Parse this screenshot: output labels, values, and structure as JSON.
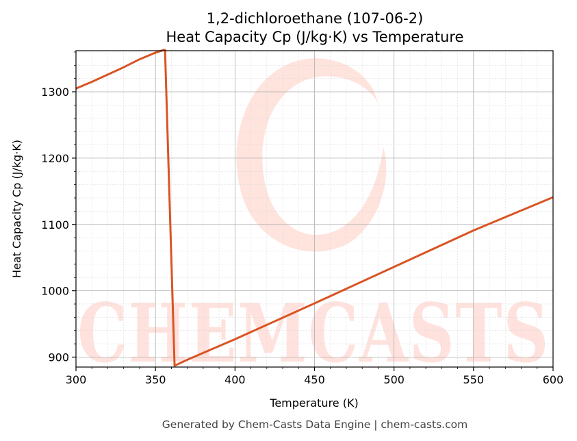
{
  "chart_data": {
    "type": "line",
    "title": "1,2-dichloroethane (107-06-2)",
    "subtitle": "Heat Capacity Cp (J/kg·K) vs Temperature",
    "xlabel": "Temperature (K)",
    "ylabel": "Heat Capacity Cp (J/kg·K)",
    "xlim": [
      300,
      600
    ],
    "ylim": [
      885,
      1362
    ],
    "xticks": [
      300,
      350,
      400,
      450,
      500,
      550,
      600
    ],
    "yticks": [
      900,
      1000,
      1100,
      1200,
      1300
    ],
    "grid": true,
    "color": "#d95424",
    "series": [
      {
        "x": [
          300,
          310,
          320,
          330,
          340,
          350,
          355,
          356,
          362,
          370,
          400,
          450,
          500,
          550,
          600
        ],
        "y": [
          1305,
          1315,
          1326,
          1337,
          1349,
          1359,
          1363,
          1363,
          887,
          896,
          927,
          981,
          1036,
          1091,
          1141
        ]
      }
    ]
  },
  "watermark": {
    "text": "CHEMCASTS"
  },
  "footer": "Generated by Chem-Casts Data Engine | chem-casts.com"
}
